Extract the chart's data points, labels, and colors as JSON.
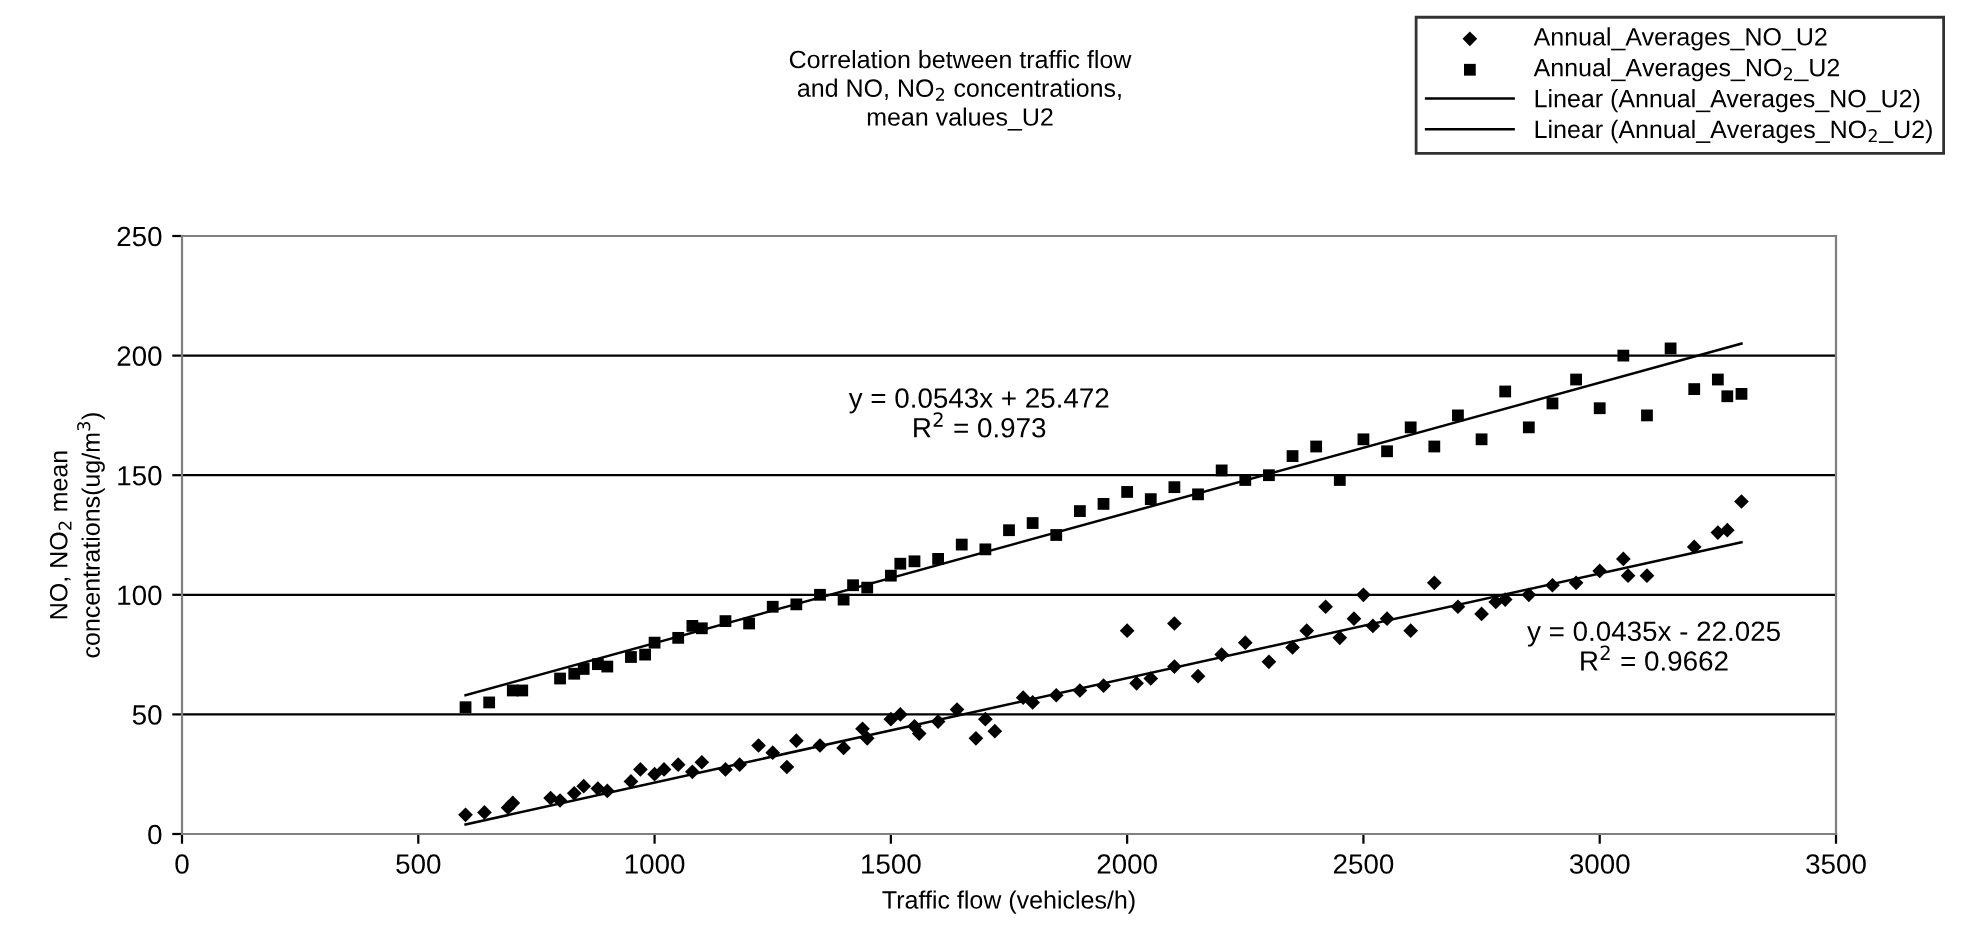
{
  "chart_data": {
    "type": "scatter",
    "title": "Correlation between traffic flow\nand NO, NO$_{2}$ concentrations,\nmean values_U2",
    "xlabel": "Traffic flow (vehicles/h)",
    "ylabel": "NO, NO$_{2}$ mean\nconcentrations(ug/m$^{3}$)",
    "xlim": [
      0,
      3500
    ],
    "xticks": [
      0,
      500,
      1000,
      1500,
      2000,
      2500,
      3000,
      3500
    ],
    "ylim": [
      0,
      250
    ],
    "yticks": [
      0,
      50,
      100,
      150,
      200,
      250
    ],
    "grid": "y",
    "legend": "top right",
    "series": [
      {
        "name": "Annual_Averages_NO_U2",
        "marker": "diamond",
        "color": "#000000",
        "x": [
          600,
          640,
          690,
          700,
          780,
          800,
          830,
          850,
          880,
          900,
          950,
          970,
          1000,
          1020,
          1050,
          1080,
          1100,
          1150,
          1180,
          1220,
          1250,
          1280,
          1300,
          1350,
          1400,
          1440,
          1450,
          1500,
          1520,
          1550,
          1560,
          1600,
          1640,
          1680,
          1700,
          1720,
          1780,
          1800,
          1850,
          1900,
          1950,
          2000,
          2020,
          2050,
          2100,
          2100,
          2150,
          2200,
          2250,
          2300,
          2350,
          2380,
          2420,
          2450,
          2480,
          2500,
          2520,
          2550,
          2600,
          2650,
          2700,
          2750,
          2780,
          2800,
          2850,
          2900,
          2950,
          3000,
          3050,
          3060,
          3100,
          3200,
          3250,
          3270,
          3300
        ],
        "values": [
          8,
          9,
          11,
          13,
          15,
          14,
          17,
          20,
          19,
          18,
          22,
          27,
          25,
          27,
          29,
          26,
          30,
          27,
          29,
          37,
          34,
          28,
          39,
          37,
          36,
          44,
          40,
          48,
          50,
          45,
          42,
          47,
          52,
          40,
          48,
          43,
          57,
          55,
          58,
          60,
          62,
          85,
          63,
          65,
          70,
          88,
          66,
          75,
          80,
          72,
          78,
          85,
          95,
          82,
          90,
          100,
          87,
          90,
          85,
          105,
          95,
          92,
          97,
          98,
          100,
          104,
          105,
          110,
          115,
          108,
          108,
          120,
          126,
          127,
          139
        ]
      },
      {
        "name": "Annual_Averages_NO$_{2}$_U2",
        "marker": "square",
        "color": "#000000",
        "x": [
          600,
          650,
          700,
          720,
          800,
          830,
          850,
          880,
          900,
          950,
          980,
          1000,
          1050,
          1080,
          1100,
          1150,
          1200,
          1250,
          1300,
          1350,
          1400,
          1420,
          1450,
          1500,
          1520,
          1550,
          1600,
          1650,
          1700,
          1750,
          1800,
          1850,
          1900,
          1950,
          2000,
          2050,
          2100,
          2150,
          2200,
          2250,
          2300,
          2350,
          2400,
          2450,
          2500,
          2550,
          2600,
          2650,
          2700,
          2750,
          2800,
          2850,
          2900,
          2950,
          3000,
          3050,
          3100,
          3150,
          3200,
          3250,
          3270,
          3300
        ],
        "values": [
          53,
          55,
          60,
          60,
          65,
          67,
          69,
          71,
          70,
          74,
          75,
          80,
          82,
          87,
          86,
          89,
          88,
          95,
          96,
          100,
          98,
          104,
          103,
          108,
          113,
          114,
          115,
          121,
          119,
          127,
          130,
          125,
          135,
          138,
          143,
          140,
          145,
          142,
          152,
          148,
          150,
          158,
          162,
          148,
          165,
          160,
          170,
          162,
          175,
          165,
          185,
          170,
          180,
          190,
          178,
          200,
          175,
          203,
          186,
          190,
          183,
          184
        ]
      },
      {
        "name": "Linear (Annual_Averages_NO_U2)",
        "type": "line",
        "marker": "none",
        "color": "#000000",
        "x": [
          600,
          3300
        ],
        "values": [
          4,
          122
        ]
      },
      {
        "name": "Linear (Annual_Averages_NO$_{2}$_U2)",
        "type": "line",
        "marker": "none",
        "color": "#000000",
        "x": [
          600,
          3300
        ],
        "values": [
          58,
          205
        ]
      }
    ],
    "annotations": [
      "y = 0.0543x + 25.472\nR$^{2}$ = 0.973",
      "y = 0.0435x - 22.025\nR$^{2}$ = 0.9662"
    ]
  }
}
